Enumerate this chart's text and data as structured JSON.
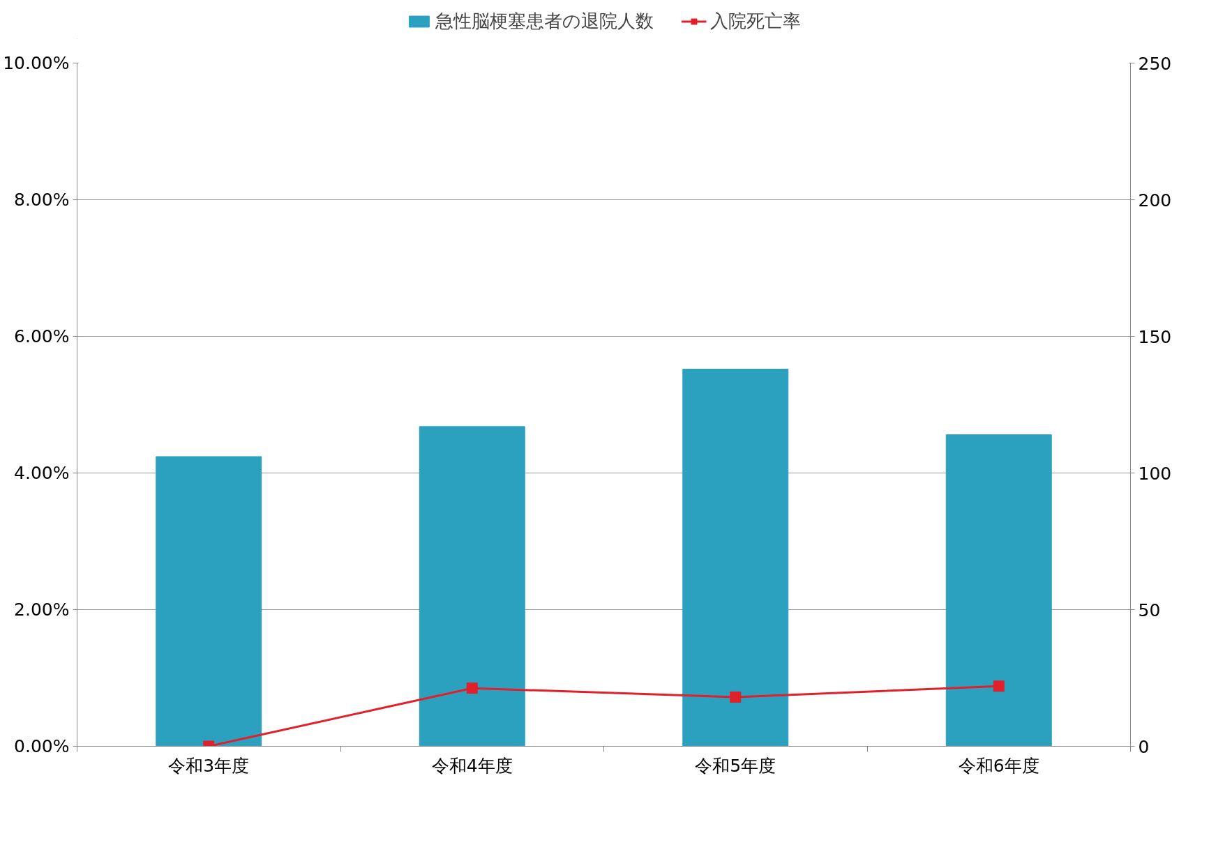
{
  "chart_data": {
    "type": "bar",
    "categories": [
      "令和3年度",
      "令和4年度",
      "令和5年度",
      "令和6年度"
    ],
    "series": [
      {
        "name": "急性脳梗塞患者の退院人数",
        "axis": "y2",
        "color": "#2ca1bf",
        "values": [
          106,
          117,
          138,
          114
        ]
      },
      {
        "name": "入院死亡率",
        "type": "line",
        "axis": "y",
        "color": "#e0202a",
        "marker": "square",
        "values": [
          0,
          0.85,
          0.72,
          0.88
        ]
      }
    ],
    "ylim": [
      0,
      10
    ],
    "yticks": [
      {
        "value": 0,
        "label": "0.00%"
      },
      {
        "value": 2,
        "label": "2.00%"
      },
      {
        "value": 4,
        "label": "4.00%"
      },
      {
        "value": 6,
        "label": "6.00%"
      },
      {
        "value": 8,
        "label": "8.00%"
      },
      {
        "value": 10,
        "label": "10.00%"
      }
    ],
    "y2lim": [
      0,
      250
    ],
    "y2ticks": [
      0,
      50,
      100,
      150,
      200,
      250
    ],
    "grid": "y",
    "legend": "top"
  }
}
